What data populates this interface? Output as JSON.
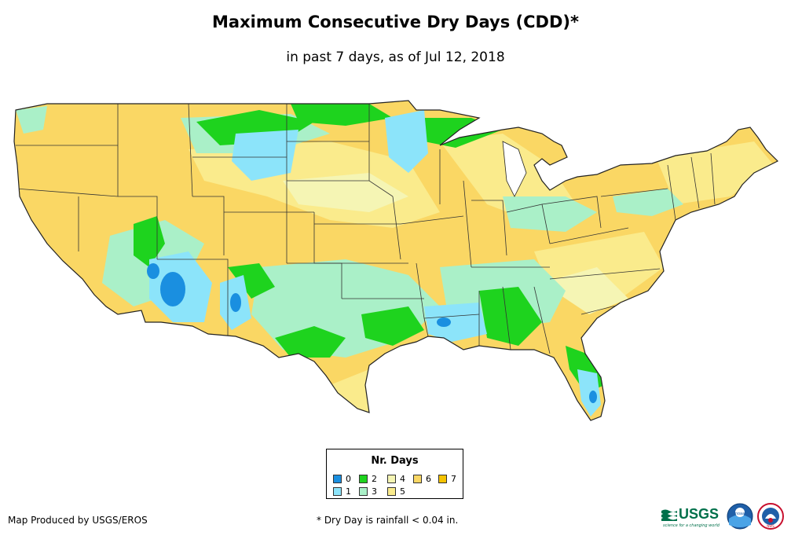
{
  "title": "Maximum Consecutive Dry Days (CDD)*",
  "subtitle": "in past 7 days, as of Jul 12, 2018",
  "legend": {
    "title": "Nr. Days",
    "items": [
      {
        "label": "0",
        "color": "#1a8fe0"
      },
      {
        "label": "1",
        "color": "#8ce4fa"
      },
      {
        "label": "2",
        "color": "#1ed31e"
      },
      {
        "label": "3",
        "color": "#aaf0c8"
      },
      {
        "label": "4",
        "color": "#f5f5b4"
      },
      {
        "label": "5",
        "color": "#faeb8c"
      },
      {
        "label": "6",
        "color": "#fad764"
      },
      {
        "label": "7",
        "color": "#f5c300"
      }
    ]
  },
  "footer": {
    "credit": "Map Produced by USGS/EROS",
    "note": "* Dry Day is rainfall < 0.04 in."
  },
  "logos": {
    "usgs": "USGS",
    "usgs_tagline": "science for a changing world",
    "noaa": "noaa",
    "nws": "NWS"
  }
}
